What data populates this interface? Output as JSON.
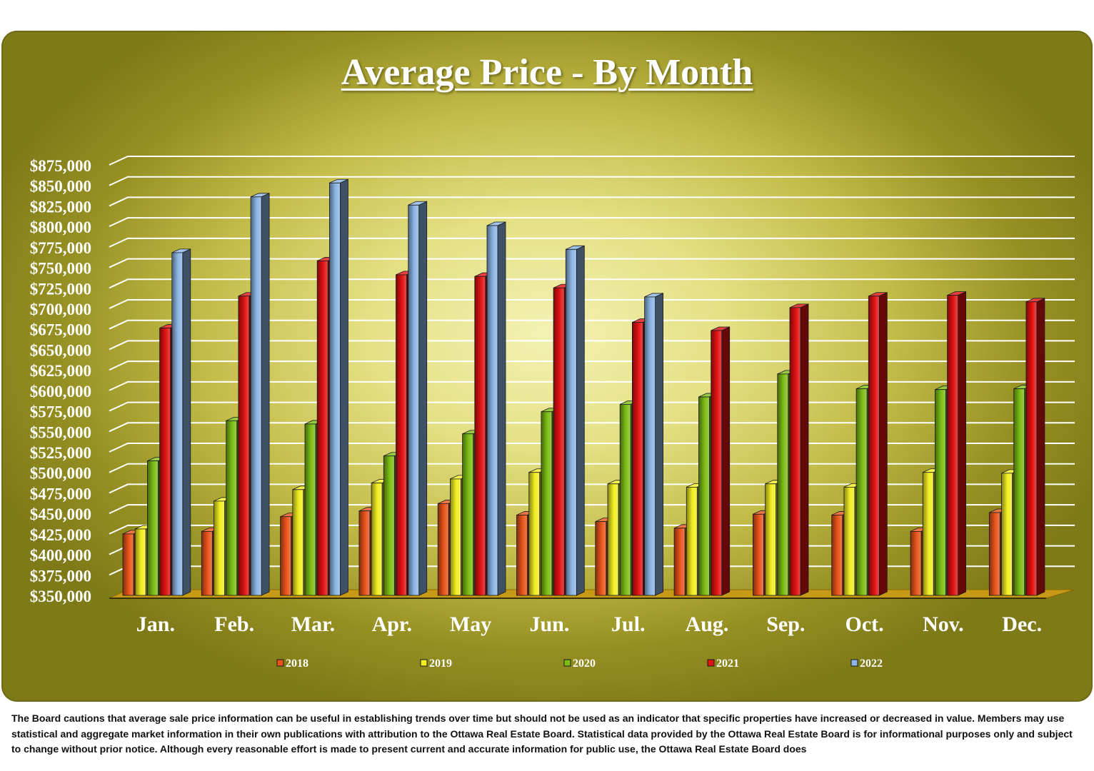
{
  "chart_data": {
    "type": "bar",
    "title": "Average Price - By Month",
    "categories": [
      "Jan.",
      "Feb.",
      "Mar.",
      "Apr.",
      "May",
      "Jun.",
      "Jul.",
      "Aug.",
      "Sep.",
      "Oct.",
      "Nov.",
      "Dec."
    ],
    "series": [
      {
        "name": "2018",
        "color": "#e8541a",
        "values": [
          425000,
          428000,
          446000,
          453000,
          462000,
          448000,
          440000,
          432000,
          449000,
          448000,
          428000,
          451000
        ]
      },
      {
        "name": "2019",
        "color": "#f2ee22",
        "values": [
          431000,
          465000,
          479000,
          487000,
          492000,
          500000,
          486000,
          482000,
          486000,
          482000,
          500000,
          499000
        ]
      },
      {
        "name": "2020",
        "color": "#7cbd14",
        "values": [
          514000,
          563000,
          559000,
          520000,
          547000,
          574000,
          583000,
          592000,
          620000,
          602000,
          601000,
          602000
        ]
      },
      {
        "name": "2021",
        "color": "#e01212",
        "values": [
          676000,
          715000,
          758000,
          741000,
          739000,
          725000,
          683000,
          673000,
          701000,
          715000,
          716000,
          708000
        ]
      },
      {
        "name": "2022",
        "color": "#8bb5e4",
        "values": [
          768000,
          836000,
          853000,
          826000,
          801000,
          772000,
          714000,
          null,
          null,
          null,
          null,
          null
        ]
      }
    ],
    "ylim": [
      350000,
      875000
    ],
    "yticks": [
      "$350,000",
      "$375,000",
      "$400,000",
      "$425,000",
      "$450,000",
      "$475,000",
      "$500,000",
      "$525,000",
      "$550,000",
      "$575,000",
      "$600,000",
      "$625,000",
      "$650,000",
      "$675,000",
      "$700,000",
      "$725,000",
      "$750,000",
      "$775,000",
      "$800,000",
      "$825,000",
      "$850,000",
      "$875,000"
    ],
    "grid": true,
    "legend_position": "bottom"
  },
  "disclaimer": "The Board cautions that average sale price information can be useful in establishing trends over time but should not be used as an indicator that specific properties have increased or decreased in value.  Members may use statistical and aggregate market information in their own publications with attribution to the Ottawa Real Estate Board. Statistical data provided by the Ottawa Real Estate Board is for informational purposes only and subject to change without prior notice. Although every reasonable effort is made to present current and accurate information for public use, the Ottawa Real Estate Board does"
}
